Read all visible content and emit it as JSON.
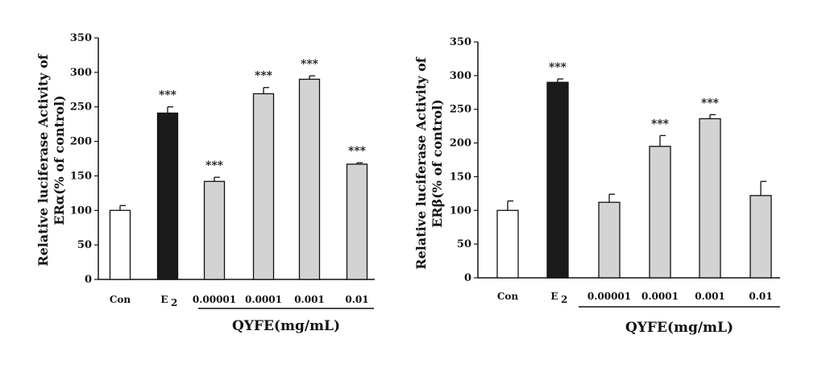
{
  "chart_data": [
    {
      "type": "bar",
      "ylabel_line1": "Relative luciferase Activity of",
      "ylabel_line2": "ERα(% of control)",
      "ylim": [
        0,
        350
      ],
      "yticks": [
        0,
        50,
        100,
        150,
        200,
        250,
        300,
        350
      ],
      "categories": [
        "Con",
        "E",
        "0.00001",
        "0.0001",
        "0.001",
        "0.01"
      ],
      "values": [
        100,
        241,
        142,
        269,
        290,
        167
      ],
      "errors": [
        7,
        9,
        6,
        9,
        5,
        2
      ],
      "significance": [
        "",
        "***",
        "***",
        "***",
        "***",
        "***"
      ],
      "bar_colors": [
        "#ffffff",
        "#1a1a1a",
        "#d3d3d3",
        "#d3d3d3",
        "#d3d3d3",
        "#d3d3d3"
      ],
      "group_label": "QYFE(mg/mL)",
      "subscript": {
        "index": 1,
        "text": "2"
      }
    },
    {
      "type": "bar",
      "ylabel_line1": "Relative luciferase Activity of",
      "ylabel_line2": "ERβ(% of control)",
      "ylim": [
        0,
        350
      ],
      "yticks": [
        0,
        50,
        100,
        150,
        200,
        250,
        300,
        350
      ],
      "categories": [
        "Con",
        "E",
        "0.00001",
        "0.0001",
        "0.001",
        "0.01"
      ],
      "values": [
        100,
        290,
        112,
        195,
        236,
        122
      ],
      "errors": [
        14,
        5,
        12,
        16,
        6,
        21
      ],
      "significance": [
        "",
        "***",
        "",
        "***",
        "***",
        ""
      ],
      "bar_colors": [
        "#ffffff",
        "#1a1a1a",
        "#d3d3d3",
        "#d3d3d3",
        "#d3d3d3",
        "#d3d3d3"
      ],
      "group_label": "QYFE(mg/mL)",
      "subscript": {
        "index": 1,
        "text": "2"
      }
    }
  ]
}
